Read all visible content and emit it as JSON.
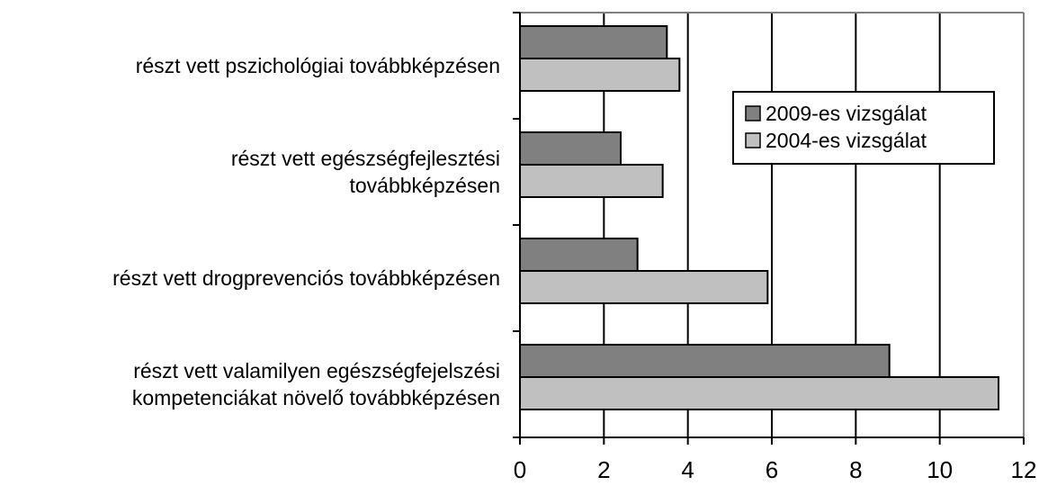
{
  "chart_data": {
    "type": "bar",
    "orientation": "horizontal",
    "categories": [
      [
        "részt vett pszichológiai továbbképzésen"
      ],
      [
        "részt vett egészségfejlesztési",
        "továbbképzésen"
      ],
      [
        "részt vett drogprevenciós továbbképzésen"
      ],
      [
        "részt vett valamilyen egészségfejelszési",
        "kompetenciákat növelő továbbképzésen"
      ]
    ],
    "series": [
      {
        "name": "2009-es vizsgálat",
        "values": [
          3.5,
          2.4,
          2.8,
          8.8
        ],
        "color": "#808080"
      },
      {
        "name": "2004-es vizsgálat",
        "values": [
          3.8,
          3.4,
          5.9,
          11.4
        ],
        "color": "#c0c0c0"
      }
    ],
    "xlim": [
      0,
      12
    ],
    "xticks": [
      "0",
      "2",
      "4",
      "6",
      "8",
      "10",
      "12"
    ],
    "grid": "vertical",
    "legend_position": "upper-right",
    "title": "",
    "xlabel": "",
    "ylabel": ""
  }
}
